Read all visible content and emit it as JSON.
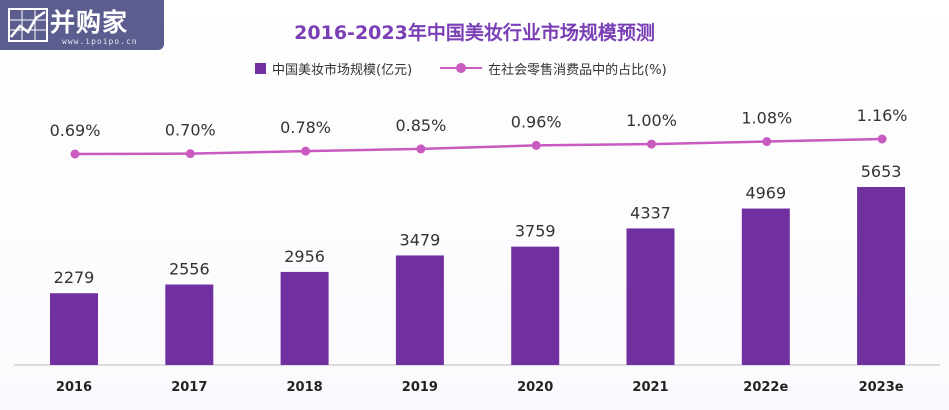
{
  "logo": {
    "name": "并购家",
    "url": "www.ipoipo.cn"
  },
  "chart_data": {
    "type": "bar",
    "title": "2016-2023年中国美妆行业市场规模预测",
    "categories": [
      "2016",
      "2017",
      "2018",
      "2019",
      "2020",
      "2021",
      "2022e",
      "2023e"
    ],
    "series": [
      {
        "name": "中国美妆市场规模(亿元)",
        "type": "bar",
        "color": "#7030a0",
        "values": [
          2279,
          2556,
          2956,
          3479,
          3759,
          4337,
          4969,
          5653
        ],
        "labels": [
          "2279",
          "2556",
          "2956",
          "3479",
          "3759",
          "4337",
          "4969",
          "5653"
        ]
      },
      {
        "name": "在社会零售消费品中的占比(%)",
        "type": "line",
        "color": "#c95bc0",
        "values": [
          0.69,
          0.7,
          0.78,
          0.85,
          0.96,
          1.0,
          1.08,
          1.16
        ],
        "labels": [
          "0.69%",
          "0.70%",
          "0.78%",
          "0.85%",
          "0.96%",
          "1.00%",
          "1.08%",
          "1.16%"
        ]
      }
    ],
    "legend_position": "top-center",
    "grid": false,
    "xlabel": "",
    "ylabel": ""
  }
}
